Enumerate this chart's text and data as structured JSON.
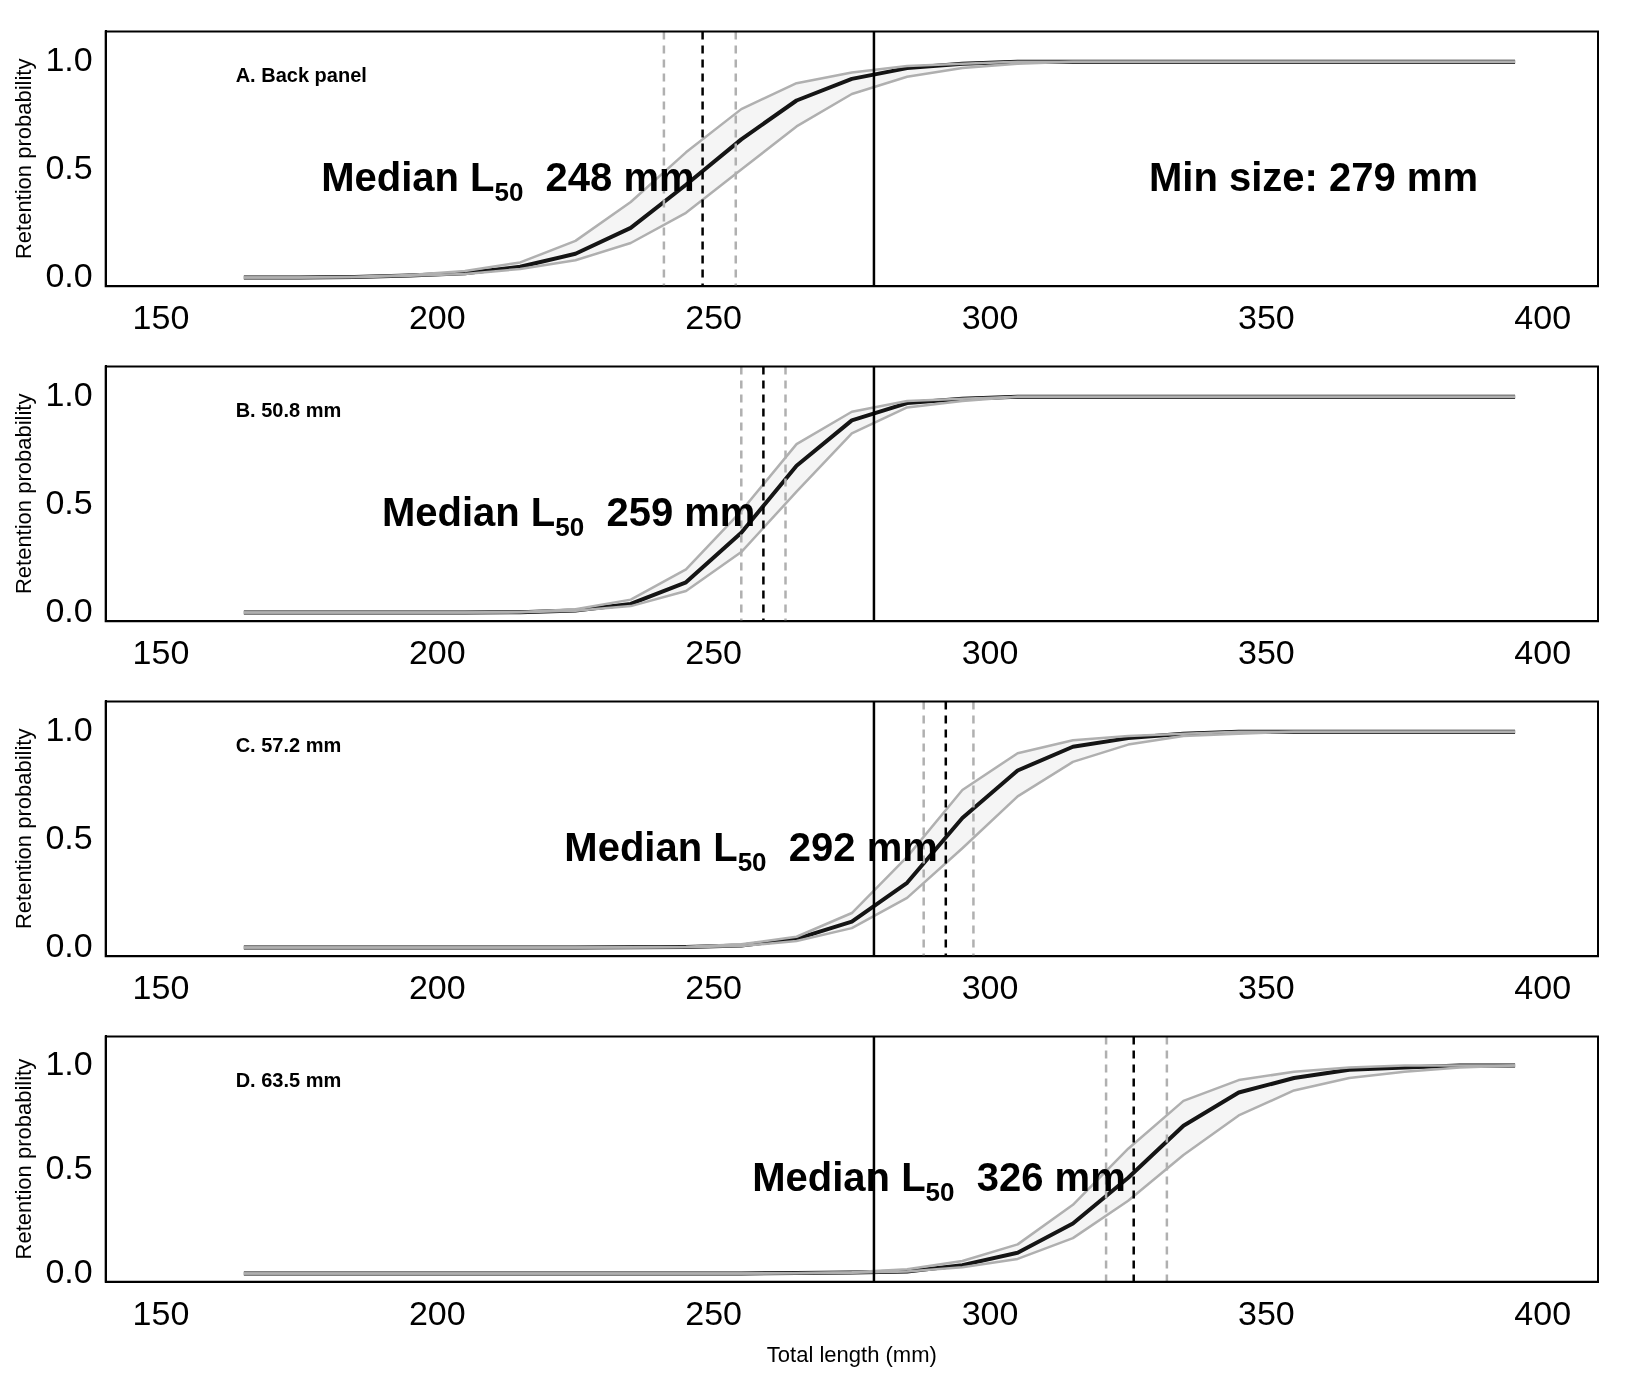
{
  "chart_data": [
    {
      "type": "line",
      "title": "A. Back panel",
      "ylabel": "Retention probability",
      "xlim": [
        140,
        410
      ],
      "ylim": [
        -0.04,
        1.14
      ],
      "xticks": [
        150,
        200,
        250,
        300,
        350,
        400
      ],
      "yticks": [
        {
          "value": 0,
          "label": "0.0"
        },
        {
          "value": 0.5,
          "label": "0.5"
        },
        {
          "value": 1,
          "label": "1.0"
        }
      ],
      "grid": false,
      "legend": false,
      "x": [
        165,
        175,
        185,
        195,
        205,
        215,
        225,
        235,
        245,
        255,
        265,
        275,
        285,
        295,
        305,
        315,
        325,
        335,
        345,
        355,
        365,
        375,
        385,
        395
      ],
      "series": [
        {
          "color": "#000000",
          "values": [
            0,
            0,
            0.003,
            0.01,
            0.02,
            0.05,
            0.11,
            0.23,
            0.43,
            0.64,
            0.82,
            0.92,
            0.97,
            0.99,
            1,
            1,
            1,
            1,
            1,
            1,
            1,
            1,
            1,
            1
          ],
          "upper": [
            0,
            0,
            0.004,
            0.012,
            0.03,
            0.07,
            0.17,
            0.35,
            0.58,
            0.78,
            0.9,
            0.95,
            0.98,
            0.99,
            1,
            1,
            1,
            1,
            1,
            1,
            1,
            1,
            1,
            1
          ],
          "lower": [
            0,
            0,
            0.002,
            0.008,
            0.016,
            0.04,
            0.08,
            0.16,
            0.3,
            0.5,
            0.7,
            0.85,
            0.93,
            0.97,
            0.99,
            1,
            1,
            1,
            1,
            1,
            1,
            1,
            1,
            1
          ]
        }
      ],
      "ref_lines": [
        {
          "axis": "x",
          "value": 241,
          "color": "#b0b0b0",
          "line_style": "dashed"
        },
        {
          "axis": "x",
          "value": 248,
          "color": "#000000",
          "line_style": "dashed"
        },
        {
          "axis": "x",
          "value": 254,
          "color": "#b0b0b0",
          "line_style": "dashed"
        },
        {
          "axis": "x",
          "value": 279,
          "color": "#000000",
          "line_style": "solid"
        }
      ],
      "annotations": [
        {
          "text": "Median L$_{50}$  248 mm",
          "x": 248,
          "y": 0.5
        },
        "Min size: 279 mm"
      ]
    },
    {
      "type": "line",
      "title": "B. 50.8 mm",
      "ylabel": "Retention probability",
      "xlim": [
        140,
        410
      ],
      "ylim": [
        -0.04,
        1.14
      ],
      "xticks": [
        150,
        200,
        250,
        300,
        350,
        400
      ],
      "yticks": [
        {
          "value": 0,
          "label": "0.0"
        },
        {
          "value": 0.5,
          "label": "0.5"
        },
        {
          "value": 1,
          "label": "1.0"
        }
      ],
      "grid": false,
      "legend": false,
      "x": [
        165,
        175,
        185,
        195,
        205,
        215,
        225,
        235,
        245,
        255,
        265,
        275,
        285,
        295,
        305,
        315,
        325,
        335,
        345,
        355,
        365,
        375,
        385,
        395
      ],
      "series": [
        {
          "color": "#000000",
          "values": [
            0,
            0,
            0,
            0,
            0,
            0.002,
            0.01,
            0.04,
            0.14,
            0.37,
            0.68,
            0.89,
            0.97,
            0.99,
            1,
            1,
            1,
            1,
            1,
            1,
            1,
            1,
            1,
            1
          ],
          "upper": [
            0,
            0,
            0,
            0,
            0,
            0.003,
            0.015,
            0.06,
            0.2,
            0.47,
            0.78,
            0.93,
            0.98,
            0.99,
            1,
            1,
            1,
            1,
            1,
            1,
            1,
            1,
            1,
            1
          ],
          "lower": [
            0,
            0,
            0,
            0,
            0,
            0.001,
            0.008,
            0.03,
            0.1,
            0.28,
            0.56,
            0.83,
            0.95,
            0.98,
            1,
            1,
            1,
            1,
            1,
            1,
            1,
            1,
            1,
            1
          ]
        }
      ],
      "ref_lines": [
        {
          "axis": "x",
          "value": 255,
          "color": "#b0b0b0",
          "line_style": "dashed"
        },
        {
          "axis": "x",
          "value": 259,
          "color": "#000000",
          "line_style": "dashed"
        },
        {
          "axis": "x",
          "value": 263,
          "color": "#b0b0b0",
          "line_style": "dashed"
        },
        {
          "axis": "x",
          "value": 279,
          "color": "#000000",
          "line_style": "solid"
        }
      ],
      "annotations": [
        {
          "text": "Median L$_{50}$  259 mm",
          "x": 259,
          "y": 0.5
        }
      ]
    },
    {
      "type": "line",
      "title": "C. 57.2 mm",
      "ylabel": "Retention probability",
      "xlim": [
        140,
        410
      ],
      "ylim": [
        -0.04,
        1.14
      ],
      "xticks": [
        150,
        200,
        250,
        300,
        350,
        400
      ],
      "yticks": [
        {
          "value": 0,
          "label": "0.0"
        },
        {
          "value": 0.5,
          "label": "0.5"
        },
        {
          "value": 1,
          "label": "1.0"
        }
      ],
      "grid": false,
      "legend": false,
      "x": [
        165,
        175,
        185,
        195,
        205,
        215,
        225,
        235,
        245,
        255,
        265,
        275,
        285,
        295,
        305,
        315,
        325,
        335,
        345,
        355,
        365,
        375,
        385,
        395
      ],
      "series": [
        {
          "color": "#000000",
          "values": [
            0,
            0,
            0,
            0,
            0,
            0,
            0,
            0.001,
            0.003,
            0.01,
            0.04,
            0.12,
            0.3,
            0.6,
            0.82,
            0.93,
            0.97,
            0.99,
            1,
            1,
            1,
            1,
            1,
            1
          ],
          "upper": [
            0,
            0,
            0,
            0,
            0,
            0,
            0,
            0.001,
            0.004,
            0.015,
            0.05,
            0.16,
            0.42,
            0.73,
            0.9,
            0.96,
            0.98,
            0.99,
            1,
            1,
            1,
            1,
            1,
            1
          ],
          "lower": [
            0,
            0,
            0,
            0,
            0,
            0,
            0,
            0,
            0.002,
            0.007,
            0.03,
            0.09,
            0.23,
            0.46,
            0.7,
            0.86,
            0.94,
            0.98,
            0.99,
            1,
            1,
            1,
            1,
            1
          ]
        }
      ],
      "ref_lines": [
        {
          "axis": "x",
          "value": 288,
          "color": "#b0b0b0",
          "line_style": "dashed"
        },
        {
          "axis": "x",
          "value": 292,
          "color": "#000000",
          "line_style": "dashed"
        },
        {
          "axis": "x",
          "value": 297,
          "color": "#b0b0b0",
          "line_style": "dashed"
        },
        {
          "axis": "x",
          "value": 279,
          "color": "#000000",
          "line_style": "solid"
        }
      ],
      "annotations": [
        {
          "text": "Median L$_{50}$  292 mm",
          "x": 292,
          "y": 0.5
        }
      ]
    },
    {
      "type": "line",
      "title": "D. 63.5 mm",
      "xlabel": "Total length (mm)",
      "ylabel": "Retention probability",
      "xlim": [
        140,
        410
      ],
      "ylim": [
        -0.04,
        1.14
      ],
      "xticks": [
        150,
        200,
        250,
        300,
        350,
        400
      ],
      "yticks": [
        {
          "value": 0,
          "label": "0.0"
        },
        {
          "value": 0.5,
          "label": "0.5"
        },
        {
          "value": 1,
          "label": "1.0"
        }
      ],
      "grid": false,
      "legend": false,
      "x": [
        165,
        175,
        185,
        195,
        205,
        215,
        225,
        235,
        245,
        255,
        265,
        275,
        285,
        295,
        305,
        315,
        325,
        335,
        345,
        355,
        365,
        375,
        385,
        395
      ],
      "series": [
        {
          "color": "#000000",
          "values": [
            0,
            0,
            0,
            0,
            0,
            0,
            0,
            0,
            0,
            0,
            0.002,
            0.005,
            0.01,
            0.04,
            0.1,
            0.24,
            0.46,
            0.71,
            0.87,
            0.94,
            0.98,
            0.99,
            1,
            1
          ],
          "upper": [
            0,
            0,
            0,
            0,
            0,
            0,
            0,
            0,
            0,
            0,
            0.002,
            0.006,
            0.02,
            0.06,
            0.14,
            0.33,
            0.6,
            0.83,
            0.93,
            0.97,
            0.99,
            1,
            1,
            1
          ],
          "lower": [
            0,
            0,
            0,
            0,
            0,
            0,
            0,
            0,
            0,
            0,
            0.001,
            0.003,
            0.01,
            0.03,
            0.07,
            0.17,
            0.35,
            0.57,
            0.76,
            0.88,
            0.94,
            0.97,
            0.99,
            1
          ]
        }
      ],
      "ref_lines": [
        {
          "axis": "x",
          "value": 321,
          "color": "#b0b0b0",
          "line_style": "dashed"
        },
        {
          "axis": "x",
          "value": 326,
          "color": "#000000",
          "line_style": "dashed"
        },
        {
          "axis": "x",
          "value": 332,
          "color": "#b0b0b0",
          "line_style": "dashed"
        },
        {
          "axis": "x",
          "value": 279,
          "color": "#000000",
          "line_style": "solid"
        }
      ],
      "annotations": [
        {
          "text": "Median L$_{50}$  326 mm",
          "x": 326,
          "y": 0.5
        }
      ]
    }
  ]
}
